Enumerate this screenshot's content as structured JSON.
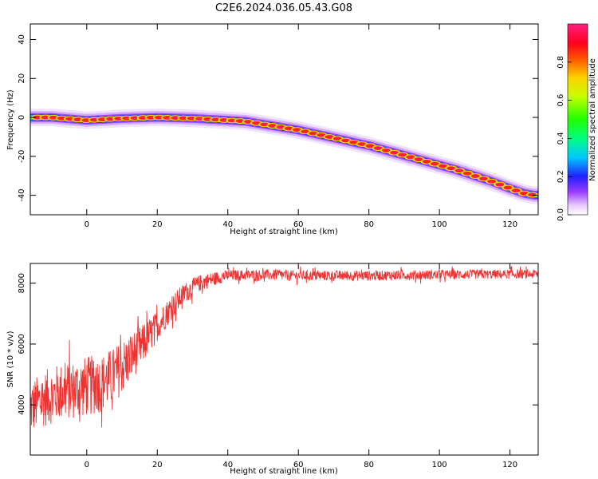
{
  "title": "C2E6.2024.036.05.43.G08",
  "chart_data": [
    {
      "type": "heatmap",
      "xlabel": "Height of straight line (km)",
      "ylabel": "Frequency (Hz)",
      "xlim": [
        -16,
        128
      ],
      "ylim": [
        -50,
        48
      ],
      "xticks": [
        0,
        20,
        40,
        60,
        80,
        100,
        120
      ],
      "yticks": [
        -40,
        -20,
        0,
        20,
        40
      ],
      "ridge": {
        "x": [
          -16,
          -10,
          0,
          10,
          20,
          30,
          40,
          45,
          50,
          55,
          60,
          65,
          70,
          75,
          80,
          85,
          90,
          95,
          100,
          105,
          110,
          115,
          120,
          124,
          127
        ],
        "y": [
          0,
          0,
          -1.5,
          -0.5,
          0,
          -0.5,
          -1.5,
          -2,
          -3.5,
          -5,
          -6.5,
          -8.5,
          -10.5,
          -12.5,
          -14.5,
          -17,
          -19.5,
          -22,
          -24.5,
          -27,
          -30,
          -33,
          -36.5,
          -39,
          -40
        ]
      },
      "colorbar": {
        "label": "Normalized spectral amplitude",
        "ticks": [
          "0.0",
          "0.2",
          "0.4",
          "0.6",
          "0.8"
        ],
        "range": [
          0,
          1
        ]
      }
    },
    {
      "type": "line",
      "xlabel": "Height of straight line (km)",
      "ylabel": "SNR (10 * v/v)",
      "xlim": [
        -16,
        128
      ],
      "ylim": [
        2350,
        8650
      ],
      "xticks": [
        0,
        20,
        40,
        60,
        80,
        100,
        120
      ],
      "yticks": [
        4000,
        6000,
        8000
      ],
      "color": "#ee3333",
      "envelope": {
        "x": [
          -16,
          -12,
          -8,
          -4,
          0,
          4,
          8,
          12,
          16,
          20,
          24,
          28,
          32,
          36,
          40,
          50,
          60,
          80,
          100,
          128
        ],
        "y": [
          3900,
          4200,
          4400,
          4500,
          4600,
          4700,
          5000,
          5500,
          6000,
          6600,
          7200,
          7700,
          8000,
          8150,
          8250,
          8280,
          8250,
          8250,
          8280,
          8300
        ]
      },
      "noise": {
        "x": [
          -16,
          0,
          10,
          20,
          30,
          40,
          128
        ],
        "amplitude": [
          900,
          1000,
          900,
          500,
          300,
          180,
          150
        ]
      }
    }
  ]
}
